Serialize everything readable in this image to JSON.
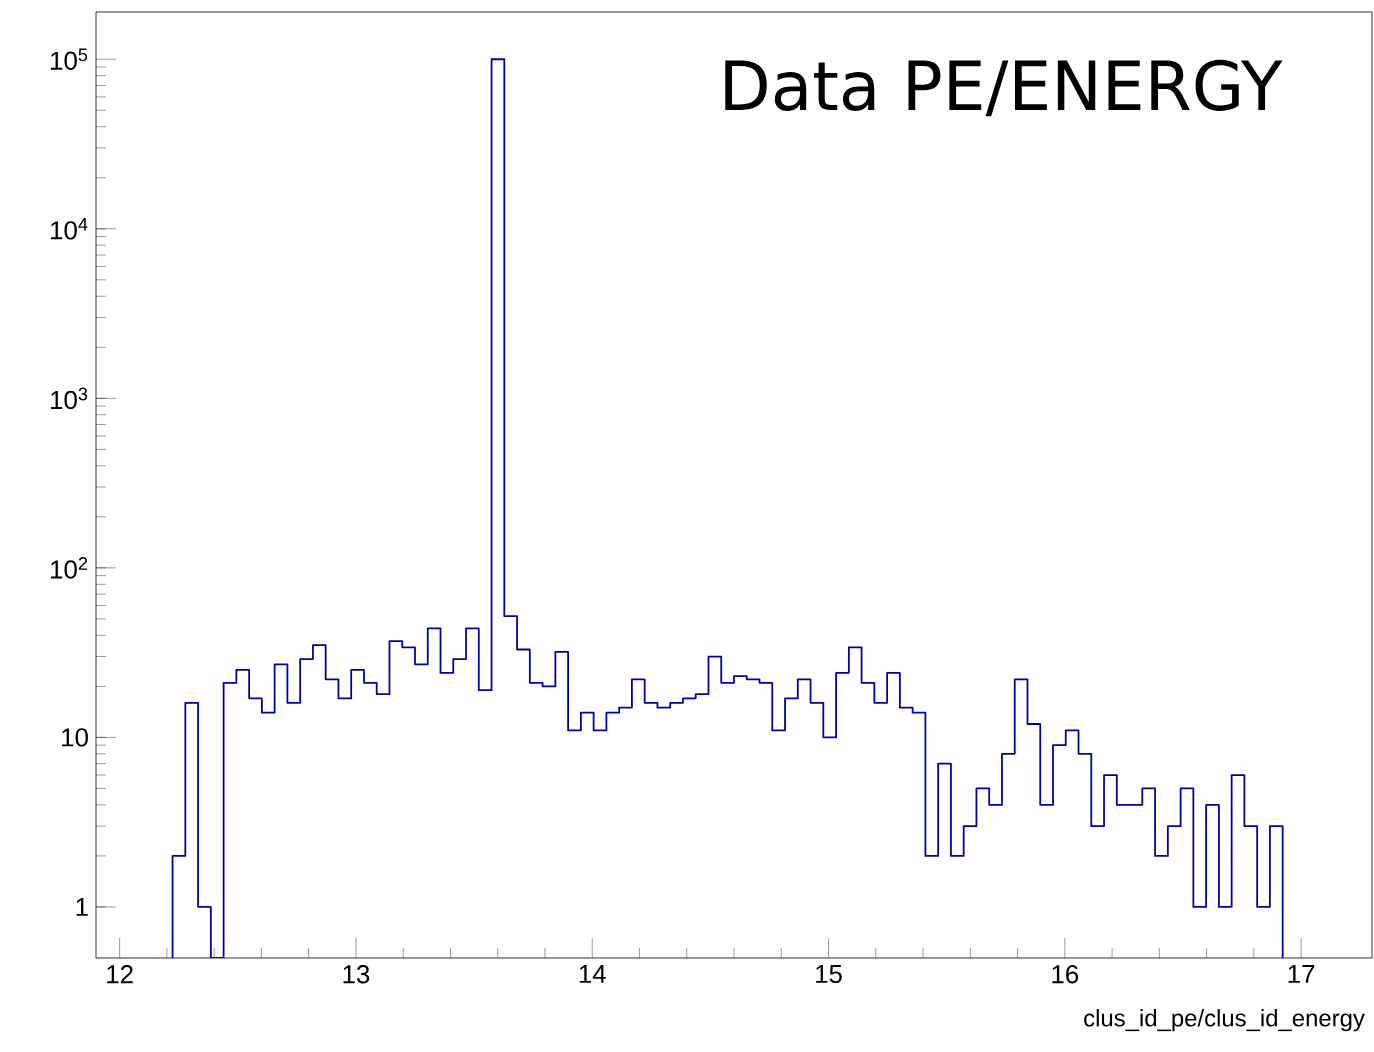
{
  "chart_data": {
    "type": "histogram",
    "title": "Data PE/ENERGY",
    "xlabel": "clus_id_pe/clus_id_energy",
    "color": "#0000aa",
    "log": "y",
    "bins": [
      12.224,
      12.278,
      12.332,
      12.386,
      12.44,
      12.494,
      12.548,
      12.602,
      12.656,
      12.71,
      12.764,
      12.818,
      12.872,
      12.926,
      12.98,
      13.034,
      13.088,
      13.142,
      13.196,
      13.25,
      13.304,
      13.358,
      13.412,
      13.466,
      13.52,
      13.574,
      13.628,
      13.682,
      13.736,
      13.79,
      13.844,
      13.898,
      13.952,
      14.006,
      14.06,
      14.114,
      14.168,
      14.222,
      14.276,
      14.33,
      14.384,
      14.438,
      14.492,
      14.546,
      14.6,
      14.654,
      14.708,
      14.762,
      14.816,
      14.87,
      14.924,
      14.978,
      15.032,
      15.086,
      15.14,
      15.194,
      15.248,
      15.302,
      15.356,
      15.41,
      15.464,
      15.518,
      15.572,
      15.626,
      15.68,
      15.734,
      15.788,
      15.842,
      15.896,
      15.95,
      16.004,
      16.058,
      16.112,
      16.166,
      16.22,
      16.274,
      16.328,
      16.382,
      16.436,
      16.49,
      16.544,
      16.598,
      16.652,
      16.706,
      16.76,
      16.814,
      16.868,
      16.922
    ],
    "values": [
      2,
      16,
      1,
      null,
      21,
      25,
      17,
      14,
      27,
      16,
      29,
      35,
      22,
      17,
      25,
      21,
      18,
      37,
      34,
      27,
      44,
      24,
      29,
      44,
      19,
      100000,
      52,
      33,
      21,
      20,
      32,
      11,
      14,
      11,
      14,
      15,
      22,
      16,
      15,
      16,
      17,
      18,
      30,
      21,
      23,
      22,
      21,
      11,
      17,
      22,
      16,
      10,
      24,
      34,
      21,
      16,
      24,
      15,
      14,
      2,
      7,
      2,
      3,
      5,
      4,
      8,
      22,
      12,
      4,
      9,
      11,
      8,
      3,
      6,
      4,
      4,
      5,
      2,
      3,
      5,
      1,
      4,
      1,
      6,
      3,
      1,
      3
    ],
    "xlim": [
      11.9,
      17.3
    ],
    "ylim": [
      0.5,
      190000
    ],
    "xticks": [
      12,
      13,
      14,
      15,
      16,
      17
    ],
    "yticks": [
      1,
      10,
      {
        "value": 100,
        "label": "10$^{2}$"
      },
      {
        "value": 1000,
        "label": "10$^{3}$"
      },
      {
        "value": 10000,
        "label": "10$^{4}$"
      },
      {
        "value": 100000,
        "label": "10$^{5}$"
      }
    ]
  }
}
